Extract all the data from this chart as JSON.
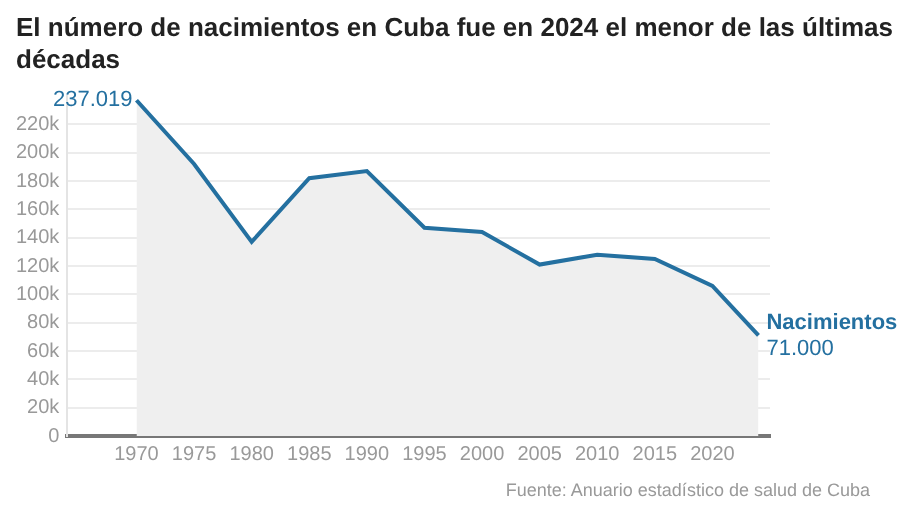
{
  "chart_data": {
    "type": "area",
    "title": "El número de nacimientos en Cuba fue en 2024 el menor de las últimas décadas",
    "x": [
      1970,
      1975,
      1980,
      1985,
      1990,
      1995,
      2000,
      2005,
      2010,
      2015,
      2020,
      2024
    ],
    "series": [
      {
        "name": "Nacimientos",
        "color": "#2470a0",
        "values": [
          237019,
          192000,
          137000,
          182000,
          187000,
          147000,
          144000,
          121000,
          128000,
          125000,
          106000,
          71000
        ],
        "value_labels": [
          "237.019",
          null,
          null,
          null,
          null,
          null,
          null,
          null,
          null,
          null,
          null,
          "71.000"
        ]
      }
    ],
    "xlim": [
      1964,
      2025
    ],
    "xticks": [
      1970,
      1975,
      1980,
      1985,
      1990,
      1995,
      2000,
      2005,
      2010,
      2015,
      2020
    ],
    "ylim": [
      0,
      240000
    ],
    "yticks": [
      0,
      {
        "value": 20000,
        "label": "20k"
      },
      {
        "value": 40000,
        "label": "40k"
      },
      {
        "value": 60000,
        "label": "60k"
      },
      {
        "value": 80000,
        "label": "80k"
      },
      {
        "value": 100000,
        "label": "100k"
      },
      {
        "value": 120000,
        "label": "120k"
      },
      {
        "value": 140000,
        "label": "140k"
      },
      {
        "value": 160000,
        "label": "160k"
      },
      {
        "value": 180000,
        "label": "180k"
      },
      {
        "value": 200000,
        "label": "200k"
      },
      {
        "value": 220000,
        "label": "220k"
      }
    ],
    "grid": "y",
    "legend": false,
    "marker": "none",
    "annotations": [
      "Fuente: Anuario estadístico de salud de Cuba"
    ]
  }
}
